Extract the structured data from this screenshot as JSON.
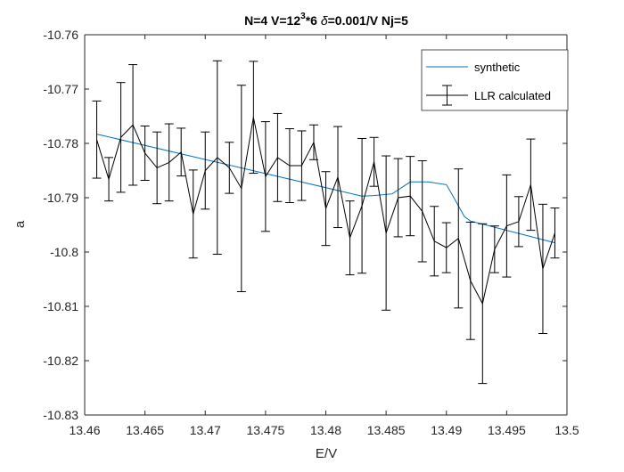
{
  "chart_data": {
    "type": "line",
    "title_parts": {
      "prefix": "N=4 V=12",
      "superscript": "3",
      "middle": "*6 ",
      "delta": "δ",
      "suffix": "=0.001/V Nj=5"
    },
    "xlabel": "E/V",
    "ylabel": "a",
    "xlim": [
      13.46,
      13.5
    ],
    "ylim": [
      -10.83,
      -10.76
    ],
    "xticks": [
      13.46,
      13.465,
      13.47,
      13.475,
      13.48,
      13.485,
      13.49,
      13.495,
      13.5
    ],
    "xtick_labels": [
      "13.46",
      "13.465",
      "13.47",
      "13.475",
      "13.48",
      "13.485",
      "13.49",
      "13.495",
      "13.5"
    ],
    "yticks": [
      -10.76,
      -10.77,
      -10.78,
      -10.79,
      -10.8,
      -10.81,
      -10.82,
      -10.83
    ],
    "ytick_labels": [
      "-10.76",
      "-10.77",
      "-10.78",
      "-10.79",
      "-10.8",
      "-10.81",
      "-10.82",
      "-10.83"
    ],
    "grid": false,
    "legend_position": "top-right",
    "series": [
      {
        "name": "synthetic",
        "color": "#0072BD",
        "x": [
          13.461,
          13.483,
          13.484,
          13.4855,
          13.487,
          13.4885,
          13.49,
          13.4905,
          13.4915,
          13.492,
          13.499
        ],
        "y": [
          -10.7783,
          -10.7897,
          -10.7896,
          -10.7893,
          -10.7871,
          -10.7871,
          -10.7876,
          -10.7895,
          -10.7935,
          -10.7943,
          -10.7983
        ]
      },
      {
        "name": "LLR calculated",
        "color": "#000000",
        "x": [
          13.461,
          13.462,
          13.463,
          13.464,
          13.465,
          13.466,
          13.467,
          13.468,
          13.469,
          13.47,
          13.471,
          13.472,
          13.473,
          13.474,
          13.475,
          13.476,
          13.477,
          13.478,
          13.479,
          13.48,
          13.481,
          13.482,
          13.483,
          13.484,
          13.485,
          13.486,
          13.487,
          13.488,
          13.489,
          13.49,
          13.491,
          13.492,
          13.493,
          13.494,
          13.495,
          13.496,
          13.497,
          13.498,
          13.499
        ],
        "y": [
          -10.7793,
          -10.7866,
          -10.7789,
          -10.7766,
          -10.7818,
          -10.7845,
          -10.7835,
          -10.7816,
          -10.793,
          -10.785,
          -10.7826,
          -10.7845,
          -10.7883,
          -10.7752,
          -10.7861,
          -10.7826,
          -10.7841,
          -10.7841,
          -10.7798,
          -10.792,
          -10.7862,
          -10.7974,
          -10.7915,
          -10.7834,
          -10.7965,
          -10.79,
          -10.7897,
          -10.7925,
          -10.798,
          -10.7992,
          -10.7975,
          -10.8053,
          -10.8095,
          -10.7995,
          -10.7952,
          -10.7944,
          -10.7876,
          -10.8031,
          -10.7965
        ],
        "err": [
          0.0071,
          0.004,
          0.0101,
          0.0111,
          0.005,
          0.0066,
          0.0071,
          0.0044,
          0.0081,
          0.0071,
          0.0178,
          0.0047,
          0.019,
          0.0103,
          0.0101,
          0.0081,
          0.0068,
          0.0064,
          0.0032,
          0.0068,
          0.0093,
          0.0068,
          0.0124,
          0.0045,
          0.0142,
          0.0072,
          0.0073,
          0.0093,
          0.0064,
          0.0046,
          0.0128,
          0.0108,
          0.0147,
          0.0043,
          0.0094,
          0.0046,
          0.0084,
          0.0119,
          0.0046
        ]
      }
    ]
  }
}
